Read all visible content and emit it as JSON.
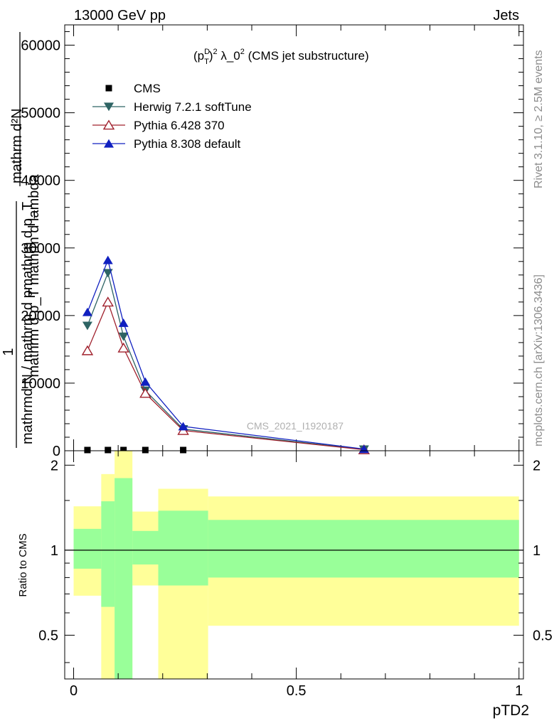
{
  "header": {
    "energy": "13000 GeV pp",
    "category": "Jets"
  },
  "side": {
    "rivet": "Rivet 3.1.10, ≥ 2.5M events",
    "mcplots": "mcplots.cern.ch [arXiv:1306.3436]"
  },
  "chart_data": [
    {
      "type": "line",
      "title_main": "(p",
      "title_sup1": "D",
      "title_sub1": "T",
      "title_sup2": "2",
      "title_rest": " λ_0",
      "title_sup3": "2",
      "title_tail": " (CMS jet substructure)",
      "ylabel_top": "mathrm d²N",
      "ylabel_mid": "mathrm d p_T mathrm d lambda",
      "ylabel_bottom": "mathrmd N / mathrm d pmathrm d p_T",
      "ylabel_one": "1",
      "watermark": "CMS_2021_I1920187",
      "xlim": [
        -0.02,
        1.01
      ],
      "ylim": [
        0,
        63000
      ],
      "yticks": [
        0,
        10000,
        20000,
        30000,
        40000,
        50000,
        60000
      ],
      "ytick_labels": [
        "0",
        "10000",
        "20000",
        "30000",
        "40000",
        "50000",
        "60000"
      ],
      "legend": [
        {
          "name": "CMS",
          "color": "#000000",
          "marker": "square"
        },
        {
          "name": "Herwig 7.2.1 softTune",
          "color": "#2e6464",
          "marker": "triangle-down"
        },
        {
          "name": "Pythia 6.428 370",
          "color": "#a0202c",
          "marker": "triangle-up-open"
        },
        {
          "name": "Pythia 8.308 default",
          "color": "#1020c0",
          "marker": "triangle-up"
        }
      ],
      "x": [
        0.031,
        0.077,
        0.112,
        0.161,
        0.246,
        0.652
      ],
      "series": [
        {
          "name": "CMS",
          "values": [
            0,
            0,
            0,
            0,
            0,
            0
          ]
        },
        {
          "name": "Herwig 7.2.1 softTune",
          "values": [
            18500,
            26300,
            16900,
            8900,
            3200,
            200
          ]
        },
        {
          "name": "Pythia 6.428 370",
          "values": [
            14800,
            22000,
            15200,
            8500,
            3000,
            150
          ]
        },
        {
          "name": "Pythia 8.308 default",
          "values": [
            20500,
            28200,
            18900,
            10200,
            3600,
            250
          ]
        }
      ]
    },
    {
      "type": "area",
      "ylabel": "Ratio to CMS",
      "xlabel": "pTD2",
      "xlim": [
        -0.02,
        1.01
      ],
      "ylim": [
        0.35,
        2.25
      ],
      "yticks": [
        0.5,
        1,
        2
      ],
      "ytick_labels": [
        "0.5",
        "1",
        "2"
      ],
      "xticks": [
        0,
        0.5,
        1
      ],
      "xtick_labels": [
        "0",
        "0.5",
        "1"
      ],
      "reference": 1.0,
      "bands": [
        {
          "x0": 0.0,
          "x1": 0.062,
          "green": [
            0.86,
            1.19
          ],
          "yellow": [
            0.69,
            1.43
          ]
        },
        {
          "x0": 0.062,
          "x1": 0.092,
          "green": [
            0.63,
            1.49
          ],
          "yellow": [
            0.35,
            1.86
          ]
        },
        {
          "x0": 0.092,
          "x1": 0.132,
          "green": [
            0.35,
            1.8
          ],
          "yellow": [
            0.35,
            2.25
          ]
        },
        {
          "x0": 0.132,
          "x1": 0.19,
          "green": [
            0.89,
            1.17
          ],
          "yellow": [
            0.75,
            1.37
          ]
        },
        {
          "x0": 0.19,
          "x1": 0.302,
          "green": [
            0.75,
            1.38
          ],
          "yellow": [
            0.35,
            1.65
          ]
        },
        {
          "x0": 0.302,
          "x1": 1.0,
          "green": [
            0.8,
            1.28
          ],
          "yellow": [
            0.54,
            1.55
          ]
        }
      ]
    }
  ]
}
